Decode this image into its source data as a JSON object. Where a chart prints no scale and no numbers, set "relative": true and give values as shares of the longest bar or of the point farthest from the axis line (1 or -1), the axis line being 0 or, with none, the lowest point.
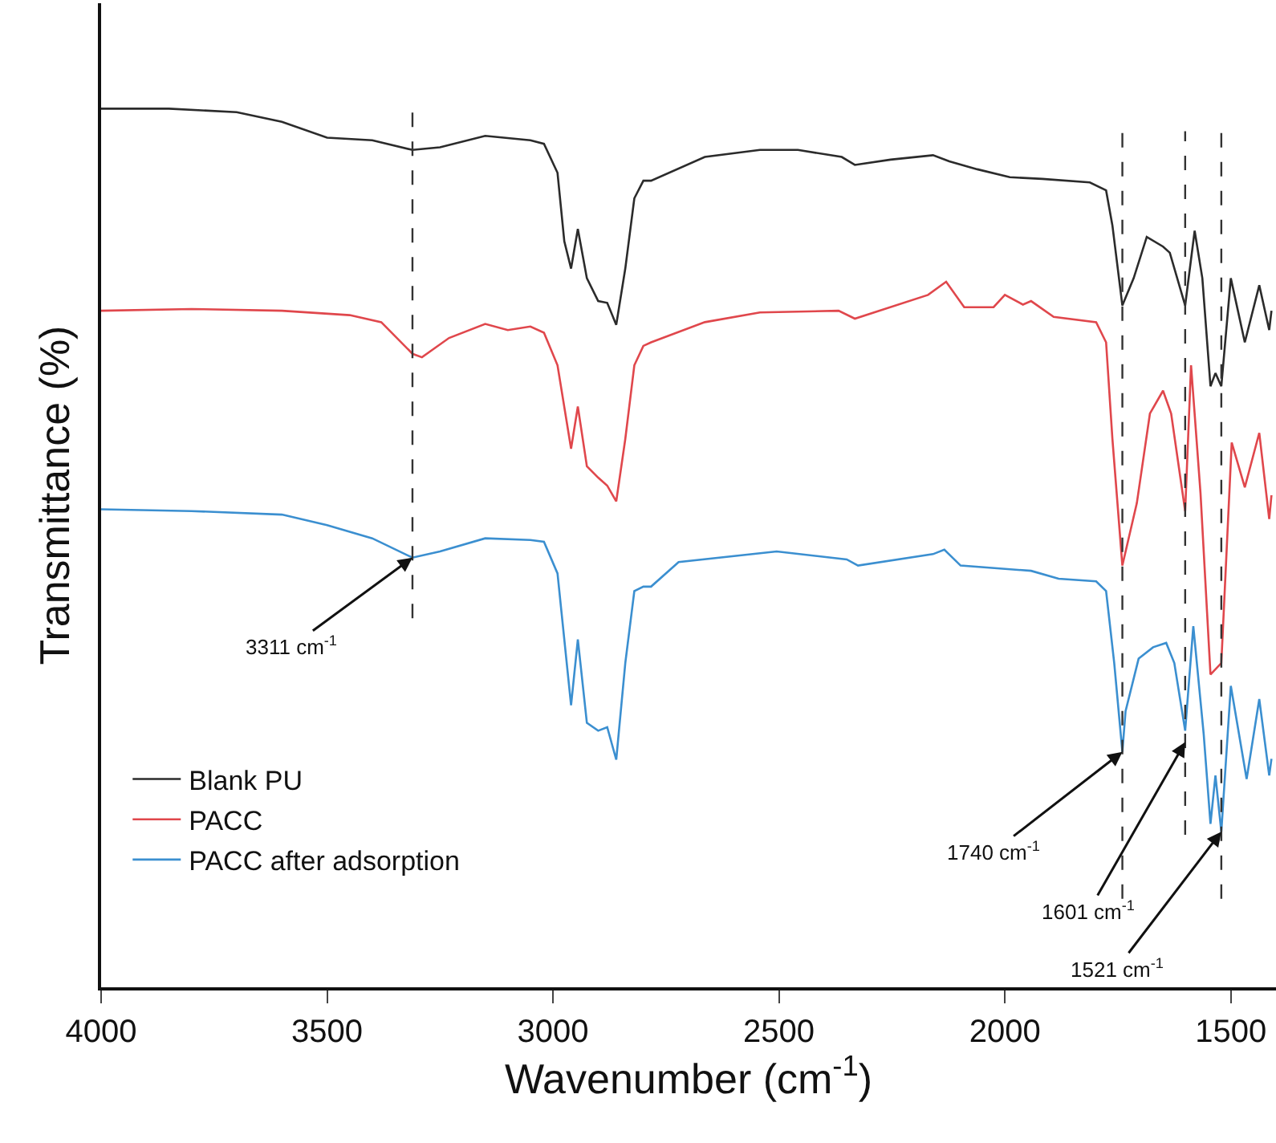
{
  "chart_data": {
    "type": "line",
    "relative": true,
    "xlabel": "Wavenumber (cm$^{-1}$)",
    "ylabel": "Transmittance (%)",
    "xlim": [
      4000,
      1400
    ],
    "xticks": [
      4000,
      3500,
      3000,
      2500,
      2000,
      1500
    ],
    "legend": "bottom left",
    "grid": false,
    "marker": "none",
    "line_style": "solid",
    "tick_labels": "x",
    "series": [
      {
        "name": "Blank PU",
        "color": "#2b2b2b",
        "x": [
          4000,
          3850,
          3700,
          3600,
          3500,
          3400,
          3311,
          3250,
          3150,
          3050,
          3020,
          2990,
          2975,
          2960,
          2945,
          2925,
          2900,
          2880,
          2860,
          2840,
          2820,
          2800,
          2783,
          2664,
          2542,
          2458,
          2361,
          2332,
          2253,
          2159,
          2123,
          2061,
          1989,
          1917,
          1812,
          1776,
          1762,
          1740,
          1715,
          1686,
          1650,
          1635,
          1601,
          1580,
          1563,
          1545,
          1534,
          1521,
          1500,
          1469,
          1437,
          1415,
          1410
        ],
        "values": [
          1.0,
          1.0,
          0.996,
          0.985,
          0.967,
          0.964,
          0.953,
          0.956,
          0.969,
          0.964,
          0.96,
          0.927,
          0.849,
          0.818,
          0.863,
          0.807,
          0.781,
          0.779,
          0.754,
          0.818,
          0.898,
          0.918,
          0.918,
          0.945,
          0.953,
          0.953,
          0.945,
          0.936,
          0.942,
          0.947,
          0.94,
          0.931,
          0.922,
          0.92,
          0.916,
          0.907,
          0.867,
          0.776,
          0.807,
          0.854,
          0.843,
          0.836,
          0.776,
          0.861,
          0.807,
          0.684,
          0.699,
          0.684,
          0.807,
          0.734,
          0.799,
          0.748,
          0.77
        ]
      },
      {
        "name": "PACC",
        "color": "#e0474c",
        "x": [
          4000,
          3800,
          3600,
          3450,
          3380,
          3311,
          3290,
          3230,
          3150,
          3100,
          3050,
          3020,
          2990,
          2960,
          2945,
          2925,
          2900,
          2880,
          2860,
          2840,
          2820,
          2800,
          2783,
          2664,
          2542,
          2368,
          2332,
          2170,
          2130,
          2090,
          2025,
          2000,
          1960,
          1942,
          1892,
          1798,
          1776,
          1762,
          1740,
          1708,
          1679,
          1650,
          1632,
          1601,
          1588,
          1567,
          1545,
          1521,
          1498,
          1469,
          1437,
          1415,
          1410
        ],
        "values": [
          0.77,
          0.772,
          0.77,
          0.765,
          0.757,
          0.721,
          0.717,
          0.739,
          0.755,
          0.748,
          0.752,
          0.745,
          0.708,
          0.613,
          0.661,
          0.593,
          0.58,
          0.571,
          0.553,
          0.624,
          0.708,
          0.73,
          0.734,
          0.757,
          0.768,
          0.77,
          0.761,
          0.788,
          0.803,
          0.774,
          0.774,
          0.788,
          0.777,
          0.781,
          0.763,
          0.757,
          0.734,
          0.624,
          0.48,
          0.551,
          0.653,
          0.679,
          0.653,
          0.542,
          0.708,
          0.562,
          0.356,
          0.369,
          0.62,
          0.569,
          0.631,
          0.533,
          0.56
        ]
      },
      {
        "name": "PACC after adsorption",
        "color": "#3b8fd0",
        "x": [
          4000,
          3800,
          3600,
          3500,
          3400,
          3311,
          3250,
          3150,
          3050,
          3020,
          2990,
          2960,
          2945,
          2925,
          2900,
          2880,
          2860,
          2840,
          2820,
          2800,
          2783,
          2722,
          2505,
          2350,
          2325,
          2159,
          2134,
          2098,
          1942,
          1881,
          1798,
          1776,
          1758,
          1740,
          1733,
          1704,
          1672,
          1643,
          1625,
          1601,
          1583,
          1560,
          1545,
          1534,
          1521,
          1500,
          1465,
          1437,
          1415,
          1410
        ],
        "values": [
          0.544,
          0.542,
          0.538,
          0.526,
          0.511,
          0.489,
          0.496,
          0.511,
          0.509,
          0.507,
          0.471,
          0.321,
          0.396,
          0.301,
          0.292,
          0.296,
          0.259,
          0.369,
          0.451,
          0.456,
          0.456,
          0.484,
          0.496,
          0.487,
          0.48,
          0.493,
          0.498,
          0.48,
          0.474,
          0.465,
          0.462,
          0.451,
          0.369,
          0.268,
          0.314,
          0.374,
          0.387,
          0.392,
          0.369,
          0.292,
          0.411,
          0.288,
          0.186,
          0.241,
          0.177,
          0.343,
          0.237,
          0.328,
          0.241,
          0.26
        ]
      }
    ],
    "ref_lines": [
      {
        "axis": "x",
        "value": 3311,
        "color": "#333333",
        "line_style": "dashed"
      },
      {
        "axis": "x",
        "value": 1740,
        "color": "#333333",
        "line_style": "dashed"
      },
      {
        "axis": "x",
        "value": 1601,
        "color": "#333333",
        "line_style": "dashed"
      },
      {
        "axis": "x",
        "value": 1521,
        "color": "#333333",
        "line_style": "dashed"
      }
    ],
    "annotations": [
      {
        "text": "3311 cm$^{-1}$",
        "x": 3311,
        "y": 0.489
      },
      {
        "text": "1740 cm$^{-1}$",
        "x": 1740,
        "y": 0.268
      },
      {
        "text": "1601 cm$^{-1}$",
        "x": 1601,
        "y": 0.279
      },
      {
        "text": "1521 cm$^{-1}$",
        "x": 1521,
        "y": 0.177
      }
    ]
  }
}
